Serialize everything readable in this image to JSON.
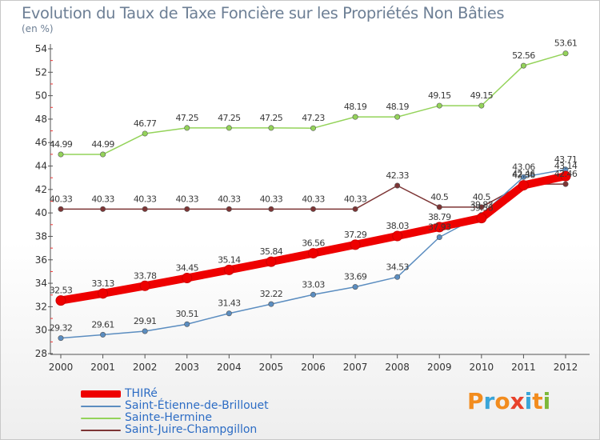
{
  "title": "Evolution du Taux de Taxe Foncière sur les Propriétés Non Bâties",
  "unit_label": "(en %)",
  "logo": {
    "text": "Proxiti",
    "letter_colors": [
      "#f28c1e",
      "#3aa5d8",
      "#f28c1e",
      "#e8412b",
      "#3aa5d8",
      "#f28c1e",
      "#7cb83a"
    ]
  },
  "chart_data": {
    "type": "line",
    "title": "Evolution du Taux de Taxe Foncière sur les Propriétés Non Bâties",
    "ylabel": "(en %)",
    "x": [
      2000,
      2001,
      2002,
      2003,
      2004,
      2005,
      2006,
      2007,
      2008,
      2009,
      2010,
      2011,
      2012
    ],
    "ylim": [
      28,
      54
    ],
    "yticks": [
      28,
      30,
      32,
      34,
      36,
      38,
      40,
      42,
      44,
      46,
      48,
      50,
      52,
      54
    ],
    "grid": false,
    "legend_position": "bottom-left",
    "series": [
      {
        "name": "THIRé",
        "color": "#ee0000",
        "values": [
          32.53,
          33.13,
          33.78,
          34.45,
          35.14,
          35.84,
          36.56,
          37.29,
          38.03,
          38.79,
          39.56,
          42.36,
          43.14
        ],
        "labels": [
          "32.53",
          "33.13",
          "33.78",
          "34.45",
          "35.14",
          "35.84",
          "36.56",
          "37.29",
          "38.03",
          "38.79",
          "39.56",
          "42.36",
          "43.14"
        ]
      },
      {
        "name": "Saint-Étienne-de-Brillouet",
        "color": "#5b8dc0",
        "values": [
          29.32,
          29.61,
          29.91,
          30.51,
          31.43,
          32.22,
          33.03,
          33.69,
          34.53,
          37.93,
          39.83,
          43.06,
          43.71
        ],
        "labels": [
          "29.32",
          "29.61",
          "29.91",
          "30.51",
          "31.43",
          "32.22",
          "33.03",
          "33.69",
          "34.53",
          "37.93",
          "39.83",
          "43.06",
          "43.71"
        ]
      },
      {
        "name": "Sainte-Hermine",
        "color": "#94d35a",
        "values": [
          44.99,
          44.99,
          46.77,
          47.25,
          47.25,
          47.25,
          47.23,
          48.19,
          48.19,
          49.15,
          49.15,
          52.56,
          53.61
        ],
        "labels": [
          "44.99",
          "44.99",
          "46.77",
          "47.25",
          "47.25",
          "47.25",
          "47.23",
          "48.19",
          "48.19",
          "49.15",
          "49.15",
          "52.56",
          "53.61"
        ]
      },
      {
        "name": "Saint-Juire-Champgillon",
        "color": "#7d3535",
        "values": [
          40.33,
          40.33,
          40.33,
          40.33,
          40.33,
          40.33,
          40.33,
          40.33,
          42.33,
          40.5,
          40.5,
          42.46,
          42.46
        ],
        "labels": [
          "40.33",
          "40.33",
          "40.33",
          "40.33",
          "40.33",
          "40.33",
          "40.33",
          "40.33",
          "42.33",
          "40.5",
          "40.5",
          "42.46",
          "42.46"
        ]
      }
    ]
  }
}
